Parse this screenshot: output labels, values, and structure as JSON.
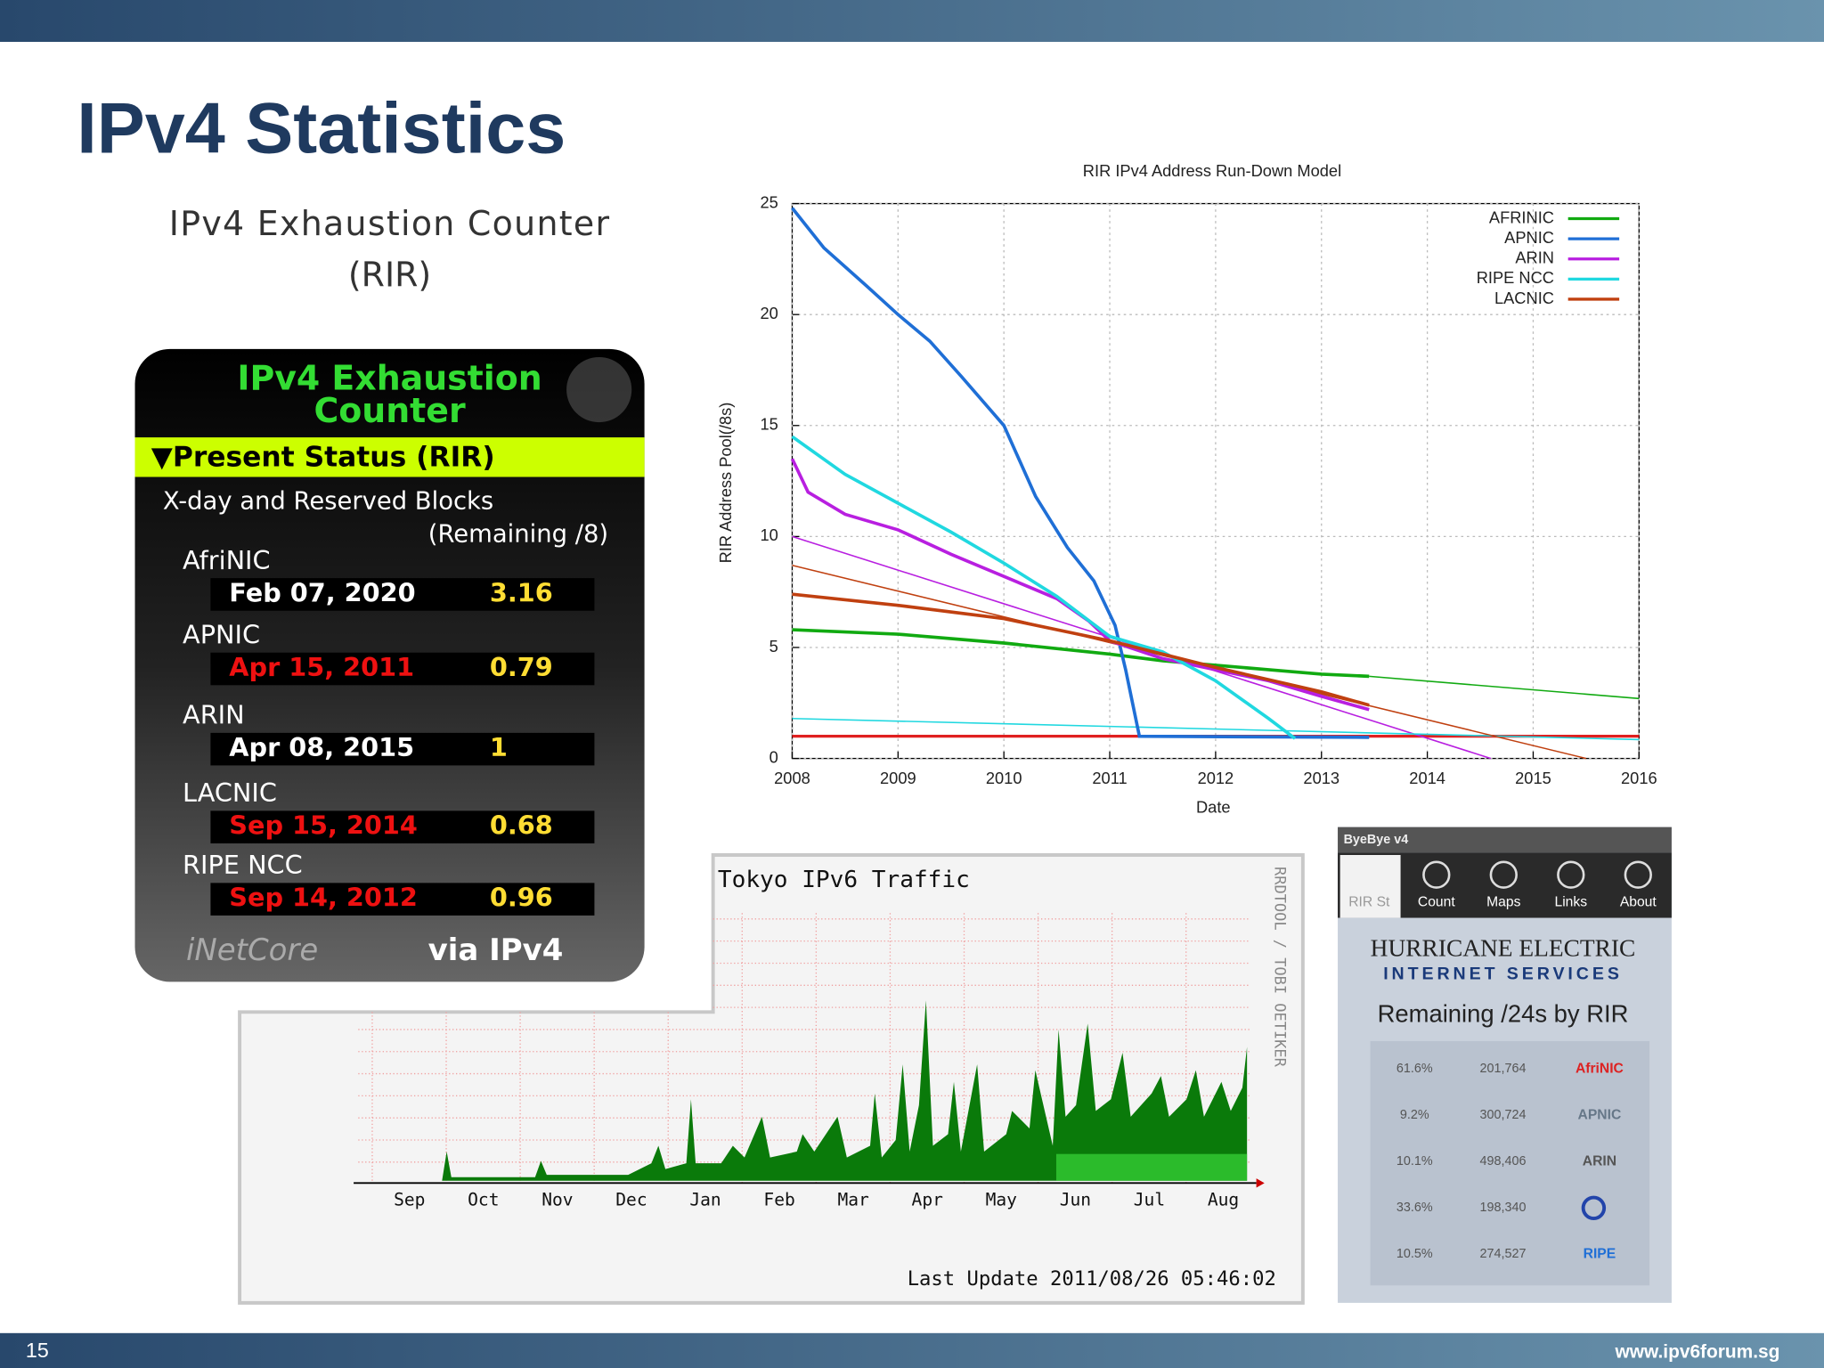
{
  "slide": {
    "title": "IPv4 Statistics",
    "page_number": "15",
    "footer": "www.ipv6forum.sg"
  },
  "counter": {
    "heading_lines": [
      "IPv4 Exhaustion Counter",
      "(RIR)"
    ],
    "widget_title_lines": [
      "IPv4 Exhaustion",
      "Counter"
    ],
    "status": "▼Present Status (RIR)",
    "subtitle": "X-day and Reserved Blocks",
    "note": "(Remaining /8)",
    "rows": [
      {
        "rir": "AfriNIC",
        "date": "Feb 07, 2020",
        "remaining": 3.16,
        "color": "#ffffff"
      },
      {
        "rir": "APNIC",
        "date": "Apr 15, 2011",
        "remaining": 0.79,
        "color": "#ee1111"
      },
      {
        "rir": "ARIN",
        "date": "Apr 08, 2015",
        "remaining": 1,
        "color": "#ffffff"
      },
      {
        "rir": "LACNIC",
        "date": "Sep 15, 2014",
        "remaining": 0.68,
        "color": "#ee1111"
      },
      {
        "rir": "RIPE NCC",
        "date": "Sep 14, 2012",
        "remaining": 0.96,
        "color": "#ee1111"
      }
    ],
    "brand": "iNetCore",
    "via": "via IPv4"
  },
  "chart_data": {
    "type": "line",
    "title": "RIR IPv4 Address Run-Down Model",
    "x_label": "Date",
    "y_label": "RIR Address Pool(/8s)",
    "xlim": [
      2008,
      2016
    ],
    "ylim": [
      0,
      25
    ],
    "xticks": [
      2008,
      2009,
      2010,
      2011,
      2012,
      2013,
      2014,
      2015,
      2016
    ],
    "yticks": [
      0,
      5,
      10,
      15,
      20,
      25
    ],
    "grid": true,
    "legend": "top-right",
    "series": [
      {
        "name": "AFRINIC",
        "color": "#11aa11",
        "x": [
          2008,
          2009,
          2010,
          2011,
          2011.5,
          2012,
          2012.5,
          2013,
          2013.45
        ],
        "values": [
          5.8,
          5.6,
          5.2,
          4.7,
          4.4,
          4.2,
          4.0,
          3.8,
          3.7
        ],
        "trend": {
          "x": [
            2013.45,
            2016
          ],
          "values": [
            3.7,
            2.7
          ]
        }
      },
      {
        "name": "APNIC",
        "color": "#1f6fd6",
        "x": [
          2008,
          2008.3,
          2008.7,
          2009,
          2009.3,
          2009.6,
          2010,
          2010.3,
          2010.6,
          2010.85,
          2011.05,
          2011.15,
          2011.28,
          2013.45
        ],
        "values": [
          24.8,
          23,
          21.3,
          20,
          18.8,
          17.2,
          15,
          11.8,
          9.5,
          8,
          6,
          4,
          1,
          0.95
        ]
      },
      {
        "name": "ARIN",
        "color": "#b81fe0",
        "x": [
          2008,
          2008.15,
          2008.5,
          2009,
          2009.5,
          2010,
          2010.5,
          2010.8,
          2011,
          2011.5,
          2012,
          2012.5,
          2013,
          2013.45
        ],
        "values": [
          13.5,
          12,
          11,
          10.3,
          9.2,
          8.2,
          7.2,
          6.2,
          5.3,
          4.5,
          4.0,
          3.5,
          2.8,
          2.2
        ],
        "trend": {
          "x": [
            2008,
            2014.6
          ],
          "values": [
            10,
            0
          ]
        }
      },
      {
        "name": "RIPE NCC",
        "color": "#20d8e0",
        "x": [
          2008,
          2008.5,
          2009,
          2009.5,
          2010,
          2010.5,
          2011,
          2011.5,
          2012,
          2012.5,
          2012.75
        ],
        "values": [
          14.5,
          12.8,
          11.5,
          10.2,
          8.8,
          7.3,
          5.5,
          4.8,
          3.5,
          1.8,
          0.9
        ],
        "trend": {
          "x": [
            2008,
            2016
          ],
          "values": [
            1.8,
            0.85
          ]
        }
      },
      {
        "name": "LACNIC",
        "color": "#c04010",
        "x": [
          2008,
          2009,
          2010,
          2011,
          2012,
          2013,
          2013.45
        ],
        "values": [
          7.4,
          6.9,
          6.3,
          5.3,
          4.1,
          3.0,
          2.4
        ],
        "trend": {
          "x": [
            2008,
            2015.5
          ],
          "values": [
            8.7,
            0
          ]
        }
      }
    ],
    "threshold": {
      "value": 1,
      "color": "#e02020"
    }
  },
  "traffic": {
    "title": "Tokyo IPv6 Traffic",
    "months": [
      "Sep",
      "Oct",
      "Nov",
      "Dec",
      "Jan",
      "Feb",
      "Mar",
      "Apr",
      "May",
      "Jun",
      "Jul",
      "Aug"
    ],
    "side_label": "RRDTOOL / TOBI OETIKER",
    "last_update": "Last Update 2011/08/26 05:46:02"
  },
  "byebye": {
    "app_title": "ByeBye v4",
    "tabs": [
      "RIR St",
      "Count",
      "Maps",
      "Links",
      "About"
    ],
    "company": "HURRICANE ELECTRIC",
    "company_sub": "INTERNET SERVICES",
    "heading": "Remaining /24s by RIR",
    "rows": [
      {
        "pct": "61.6%",
        "count": "201,764",
        "logo": "AfriNIC",
        "color": "#dd2222"
      },
      {
        "pct": "9.2%",
        "count": "300,724",
        "logo": "APNIC",
        "color": "#667788"
      },
      {
        "pct": "10.1%",
        "count": "498,406",
        "logo": "ARIN",
        "color": "#555555"
      },
      {
        "pct": "33.6%",
        "count": "198,340",
        "color": "#2244aa"
      },
      {
        "pct": "10.5%",
        "count": "274,527",
        "logo": "RIPE",
        "color": "#1f6fd6"
      }
    ]
  }
}
